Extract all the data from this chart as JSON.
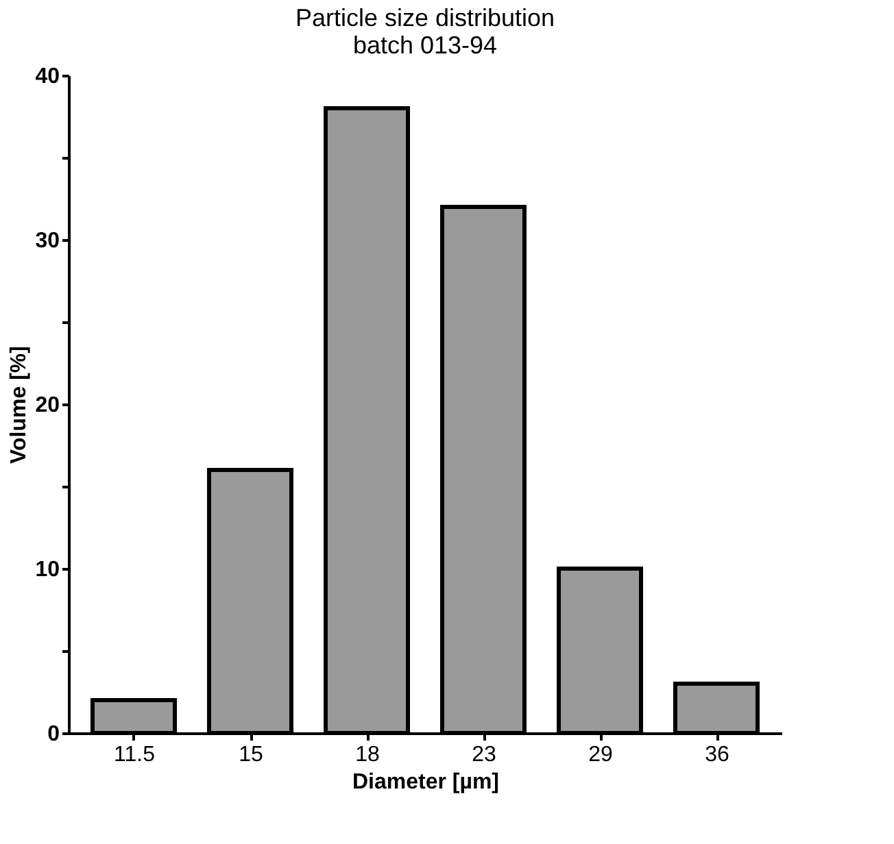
{
  "chart_data": {
    "type": "bar",
    "title": [
      "Particle size distribution",
      "batch 013-94"
    ],
    "categories": [
      "11.5",
      "15",
      "18",
      "23",
      "29",
      "36"
    ],
    "values": [
      2,
      16,
      38,
      32,
      10,
      3
    ],
    "color": "#9a9a9a",
    "xlabel": "Diameter [µm]",
    "ylabel": "Volume [%]",
    "ylim": [
      0,
      40
    ],
    "yticks": [
      0,
      {
        "value": 5,
        "label": null
      },
      10,
      {
        "value": 15,
        "label": null
      },
      20,
      {
        "value": 25,
        "label": null
      },
      30,
      {
        "value": 35,
        "label": null
      },
      40
    ],
    "grid": false
  }
}
